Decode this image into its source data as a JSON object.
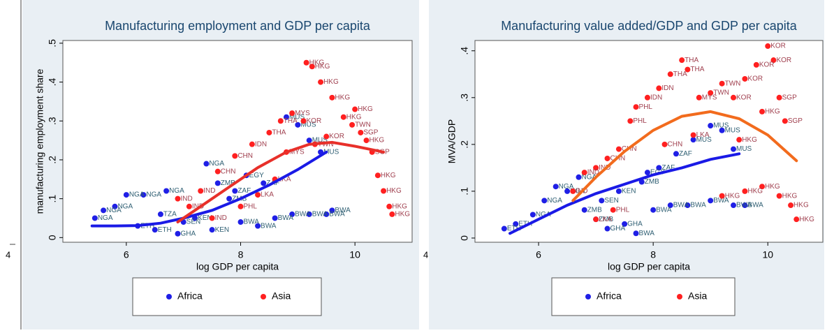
{
  "chart_data": [
    {
      "type": "scatter",
      "title": "Manufacturing employment and GDP per capita",
      "xlabel": "log GDP per capita",
      "ylabel": "manufacturing employment share",
      "xlim": [
        4.89,
        11.0
      ],
      "ylim": [
        -0.012,
        0.507
      ],
      "xticks": [
        6,
        8,
        10
      ],
      "yticks": [
        0,
        {
          "value": 0.1,
          "label": ".1"
        },
        {
          "value": 0.2,
          "label": ".2"
        },
        {
          "value": 0.3,
          "label": ".3"
        },
        {
          "value": 0.4,
          "label": ".4"
        },
        {
          "value": 0.5,
          "label": ".5"
        }
      ],
      "annotation": "4",
      "legend": "bottom",
      "series": [
        {
          "name": "Africa",
          "color": "#1f1fe6",
          "label_color": "#2f5f73",
          "x": [
            5.45,
            5.6,
            5.8,
            6.0,
            6.3,
            6.7,
            6.2,
            6.5,
            6.9,
            7.2,
            7.4,
            7.6,
            7.8,
            8.0,
            8.3,
            8.6,
            8.9,
            9.2,
            9.5,
            9.6,
            7.9,
            8.4,
            8.8,
            9.0,
            9.2,
            9.4,
            8.1,
            7.0,
            6.6,
            7.5
          ],
          "values": [
            0.05,
            0.07,
            0.08,
            0.11,
            0.11,
            0.12,
            0.03,
            0.02,
            0.01,
            0.05,
            0.19,
            0.14,
            0.1,
            0.04,
            0.03,
            0.05,
            0.06,
            0.06,
            0.06,
            0.07,
            0.12,
            0.14,
            0.31,
            0.29,
            0.25,
            0.22,
            0.16,
            0.04,
            0.06,
            0.02
          ],
          "labels": [
            "NGA",
            "NGA",
            "NGA",
            "NGA",
            "NGA",
            "NGA",
            "ETH",
            "ETH",
            "GHA",
            "KEN",
            "NGA",
            "ZMB",
            "ZMB",
            "BWA",
            "BWA",
            "BWA",
            "BWA",
            "BWA",
            "BWA",
            "BWA",
            "ZAF",
            "ZAF",
            "MUS",
            "MUS",
            "MUS",
            "MUS",
            "EGY",
            "SEN",
            "TZA",
            "KEN"
          ]
        },
        {
          "name": "Asia",
          "color": "#ff2020",
          "label_color": "#a0404f",
          "x": [
            6.9,
            7.1,
            7.3,
            7.6,
            7.9,
            8.2,
            8.5,
            8.7,
            8.9,
            9.1,
            9.15,
            9.25,
            9.4,
            9.6,
            9.8,
            9.95,
            10.1,
            10.2,
            10.3,
            10.4,
            10.5,
            10.6,
            10.65,
            10.0,
            9.5,
            9.3,
            8.0,
            7.5,
            8.3,
            8.6,
            8.8
          ],
          "values": [
            0.1,
            0.08,
            0.12,
            0.17,
            0.21,
            0.24,
            0.27,
            0.3,
            0.32,
            0.3,
            0.45,
            0.44,
            0.4,
            0.36,
            0.31,
            0.29,
            0.27,
            0.25,
            0.22,
            0.16,
            0.12,
            0.08,
            0.06,
            0.33,
            0.26,
            0.24,
            0.08,
            0.05,
            0.11,
            0.15,
            0.22
          ],
          "labels": [
            "IND",
            "IND",
            "IND",
            "CHN",
            "CHN",
            "IDN",
            "THA",
            "THA",
            "MYS",
            "KOR",
            "HKG",
            "HKG",
            "HKG",
            "HKG",
            "HKG",
            "TWN",
            "SGP",
            "HKG",
            "SGP",
            "HKG",
            "HKG",
            "HKG",
            "HKG",
            "HKG",
            "KOR",
            "TWN",
            "PHL",
            "IND",
            "LKA",
            "LKA",
            "MYS"
          ]
        }
      ],
      "fits": [
        {
          "color": "#1a1ae6",
          "x": [
            5.4,
            5.8,
            6.2,
            6.6,
            7.0,
            7.5,
            8.0,
            8.5,
            9.0,
            9.5
          ],
          "values": [
            0.03,
            0.03,
            0.031,
            0.037,
            0.05,
            0.07,
            0.1,
            0.135,
            0.175,
            0.22
          ]
        },
        {
          "color": "#e8302a",
          "x": [
            6.9,
            7.3,
            7.8,
            8.3,
            8.8,
            9.2,
            9.6,
            10.0,
            10.5
          ],
          "values": [
            0.04,
            0.08,
            0.13,
            0.18,
            0.22,
            0.24,
            0.245,
            0.235,
            0.22
          ]
        }
      ]
    },
    {
      "type": "scatter",
      "title": "Manufacturing value added/GDP and GDP per capita",
      "xlabel": "log GDP per capita",
      "ylabel": "MVA/GDP",
      "xlim": [
        4.89,
        10.96
      ],
      "ylim": [
        -0.009,
        0.422
      ],
      "xticks": [
        6,
        8,
        10
      ],
      "yticks": [
        0,
        {
          "value": 0.1,
          "label": ".1"
        },
        {
          "value": 0.2,
          "label": ".2"
        },
        {
          "value": 0.3,
          "label": ".3"
        },
        {
          "value": 0.4,
          "label": ".4"
        }
      ],
      "annotation": "4",
      "legend": "bottom",
      "series": [
        {
          "name": "Africa",
          "color": "#1f1fe6",
          "label_color": "#2f5f73",
          "x": [
            5.4,
            5.6,
            5.9,
            6.1,
            6.3,
            6.5,
            6.8,
            7.0,
            7.2,
            7.5,
            7.7,
            8.0,
            8.3,
            8.6,
            9.0,
            9.4,
            9.6,
            7.4,
            7.8,
            8.1,
            8.4,
            8.7,
            9.0,
            9.2,
            9.4,
            6.7,
            7.1,
            7.9
          ],
          "values": [
            0.02,
            0.03,
            0.05,
            0.08,
            0.11,
            0.1,
            0.06,
            0.04,
            0.02,
            0.03,
            0.01,
            0.06,
            0.07,
            0.07,
            0.08,
            0.07,
            0.07,
            0.1,
            0.12,
            0.15,
            0.18,
            0.21,
            0.24,
            0.23,
            0.19,
            0.13,
            0.08,
            0.14
          ],
          "labels": [
            "ETH",
            "ETH",
            "NGA",
            "NGA",
            "NGA",
            "NGA",
            "ZMB",
            "ZMB",
            "GHA",
            "GHA",
            "BWA",
            "BWA",
            "BWA",
            "BWA",
            "BWA",
            "BWA",
            "BWA",
            "KEN",
            "ZMB",
            "ZAF",
            "ZAF",
            "MUS",
            "MUS",
            "MUS",
            "MUS",
            "NGA",
            "SEN",
            "EGY"
          ]
        },
        {
          "name": "Asia",
          "color": "#ff2020",
          "label_color": "#a0404f",
          "x": [
            6.6,
            6.8,
            7.0,
            7.2,
            7.4,
            7.6,
            7.7,
            7.9,
            8.1,
            8.3,
            8.5,
            8.6,
            8.8,
            9.0,
            9.2,
            9.4,
            9.6,
            9.8,
            10.0,
            10.1,
            10.2,
            10.3,
            9.9,
            9.5,
            7.0,
            7.3,
            9.2,
            9.6,
            9.9,
            10.2,
            10.4,
            10.5,
            8.2,
            8.7
          ],
          "values": [
            0.1,
            0.14,
            0.15,
            0.17,
            0.19,
            0.25,
            0.28,
            0.3,
            0.32,
            0.35,
            0.38,
            0.36,
            0.3,
            0.31,
            0.33,
            0.3,
            0.34,
            0.37,
            0.41,
            0.38,
            0.3,
            0.25,
            0.27,
            0.21,
            0.04,
            0.06,
            0.09,
            0.1,
            0.11,
            0.09,
            0.07,
            0.04,
            0.2,
            0.22
          ],
          "labels": [
            "IND",
            "IND",
            "IND",
            "CHN",
            "CHN",
            "PHL",
            "PHL",
            "IDN",
            "IDN",
            "THA",
            "THA",
            "THA",
            "MYS",
            "TWN",
            "TWN",
            "KOR",
            "KOR",
            "KOR",
            "KOR",
            "KOR",
            "SGP",
            "SGP",
            "HKG",
            "HKG",
            "LKA",
            "PHL",
            "HKG",
            "HKG",
            "HKG",
            "HKG",
            "HKG",
            "HKG",
            "CHN",
            "LKA"
          ]
        }
      ],
      "fits": [
        {
          "color": "#1a1ae6",
          "x": [
            5.5,
            6.0,
            6.5,
            7.0,
            7.5,
            8.0,
            8.5,
            9.0,
            9.5
          ],
          "values": [
            0.01,
            0.04,
            0.07,
            0.095,
            0.115,
            0.135,
            0.15,
            0.168,
            0.18
          ]
        },
        {
          "color": "#f26b1d",
          "x": [
            6.6,
            7.0,
            7.5,
            8.0,
            8.5,
            9.0,
            9.5,
            10.0,
            10.5
          ],
          "values": [
            0.08,
            0.13,
            0.185,
            0.23,
            0.26,
            0.27,
            0.255,
            0.22,
            0.165
          ]
        }
      ]
    }
  ]
}
